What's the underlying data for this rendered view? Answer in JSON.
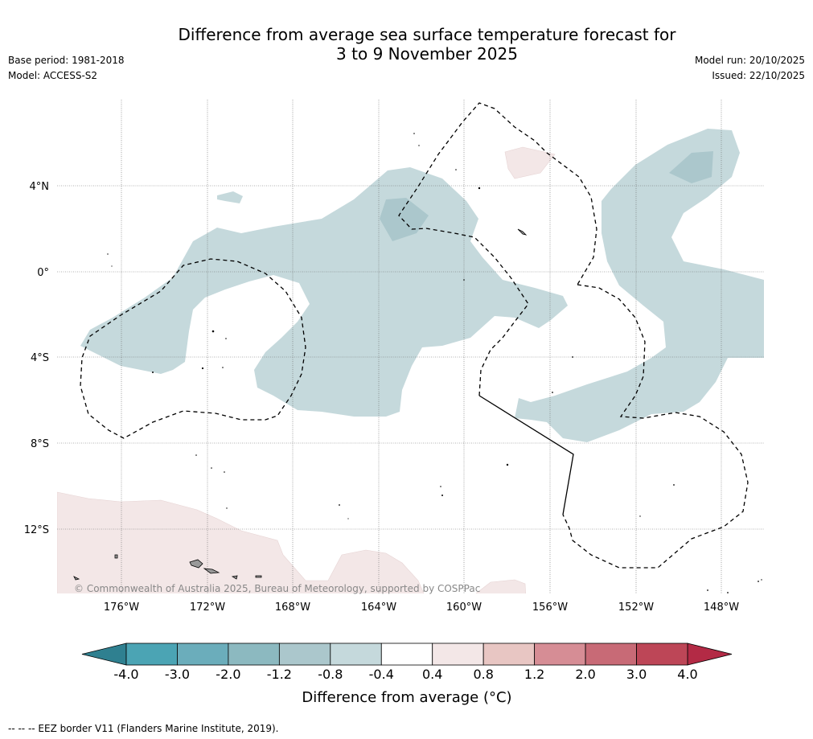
{
  "header": {
    "title_line1": "Difference from average sea surface temperature forecast for",
    "title_line2": "3 to 9 November 2025",
    "base_period": "Base period: 1981-2018",
    "model": "Model: ACCESS-S2",
    "model_run": "Model run: 20/10/2025",
    "issued": "Issued: 22/10/2025"
  },
  "map": {
    "lat_labels": [
      "4°N",
      "0°",
      "4°S",
      "8°S",
      "12°S"
    ],
    "lon_labels": [
      "176°W",
      "172°W",
      "168°W",
      "164°W",
      "160°W",
      "156°W",
      "152°W",
      "148°W"
    ],
    "copyright": "© Commonwealth of Australia 2025, Bureau of Meteorology, supported by COSPPac",
    "colors": {
      "neg_04_08": "#c5d9dc",
      "neg_08_12": "#abc7cc",
      "pos_04_08": "#f3e7e7",
      "land": "#999999"
    }
  },
  "colorbar": {
    "ticks": [
      "-4.0",
      "-3.0",
      "-2.0",
      "-1.2",
      "-0.8",
      "-0.4",
      "0.4",
      "0.8",
      "1.2",
      "2.0",
      "3.0",
      "4.0"
    ],
    "colors": [
      "#4ba4b4",
      "#6badbb",
      "#8cb9c0",
      "#abc7cc",
      "#c5d9dc",
      "#ffffff",
      "#f3e7e7",
      "#e8c6c3",
      "#d68d95",
      "#c86a76",
      "#bd4657"
    ],
    "under_color": "#2f8090",
    "over_color": "#b32a45",
    "title": "Difference from average (°C)"
  },
  "footnote": "--  --  -- EEZ border V11 (Flanders Marine Institute, 2019)."
}
